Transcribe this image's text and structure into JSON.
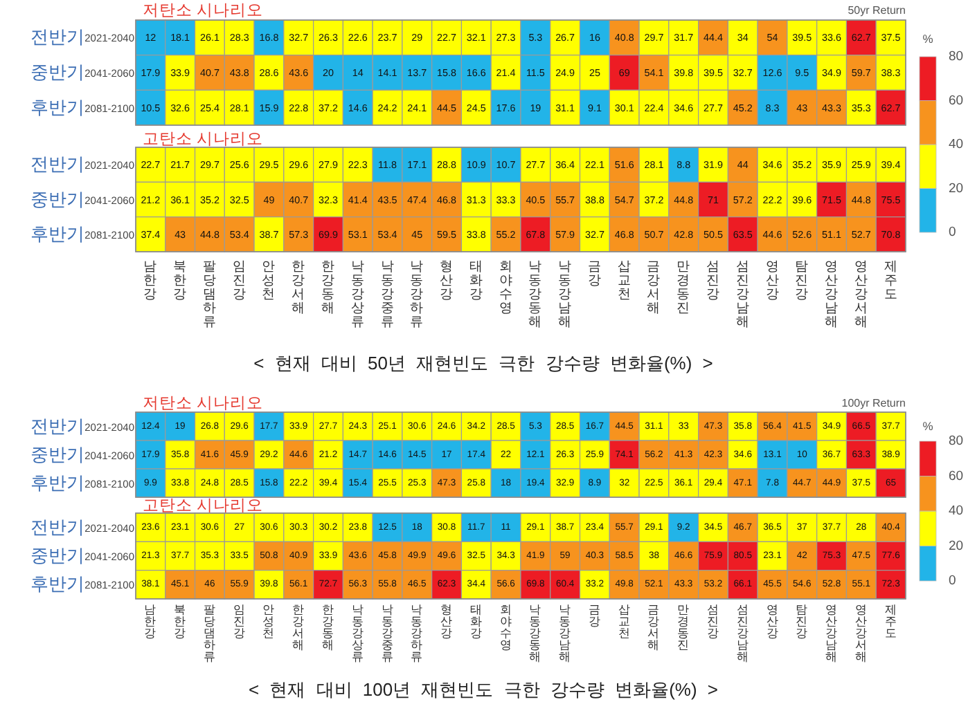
{
  "chart_data": [
    {
      "type": "heatmap",
      "title": "저탄소 시나리오",
      "annotations": [
        "50yr Return"
      ],
      "categories": [
        "남한강",
        "북한강",
        "팔당댐하류",
        "임진강",
        "안성천",
        "한강서해",
        "한강동해",
        "낙동강상류",
        "낙동강중류",
        "낙동강하류",
        "형산강",
        "태화강",
        "회야수영",
        "낙동강동해",
        "낙동강남해",
        "금강",
        "삽교천",
        "금강서해",
        "만경동진",
        "섬진강",
        "섬진강남해",
        "영산강",
        "탐진강",
        "영산강남해",
        "영산강서해",
        "제주도"
      ],
      "y_categories": [
        "전반기2021-2040",
        "중반기2041-2060",
        "후반기2081-2100"
      ],
      "cells": [
        [
          12,
          18.1,
          26.1,
          28.3,
          16.8,
          32.7,
          26.3,
          22.6,
          23.7,
          29,
          22.7,
          32.1,
          27.3,
          5.3,
          26.7,
          16,
          40.8,
          29.7,
          31.7,
          44.4,
          34,
          54,
          39.5,
          33.6,
          62.7,
          37.5
        ],
        [
          17.9,
          33.9,
          40.7,
          43.8,
          28.6,
          43.6,
          20,
          14,
          14.1,
          13.7,
          15.8,
          16.6,
          21.4,
          11.5,
          24.9,
          25,
          69,
          54.1,
          39.8,
          39.5,
          32.7,
          12.6,
          9.5,
          34.9,
          59.7,
          38.3
        ],
        [
          10.5,
          32.6,
          25.4,
          28.1,
          15.9,
          22.8,
          37.2,
          14.6,
          24.2,
          24.1,
          44.5,
          24.5,
          17.6,
          19,
          31.1,
          9.1,
          30.1,
          22.4,
          34.6,
          27.7,
          45.2,
          8.3,
          43,
          43.3,
          35.3,
          62.7
        ]
      ],
      "clim": [
        0,
        80
      ],
      "cticks": [
        0,
        20,
        40,
        60,
        80
      ],
      "clabel": "%",
      "tick_labels": "y",
      "data_labels": true
    },
    {
      "type": "heatmap",
      "title": "고탄소 시나리오",
      "annotations": [
        "< 현재 대비 50년 재현빈도 극한 강수량 변화율(%) >"
      ],
      "categories": [
        "남한강",
        "북한강",
        "팔당댐하류",
        "임진강",
        "안성천",
        "한강서해",
        "한강동해",
        "낙동강상류",
        "낙동강중류",
        "낙동강하류",
        "형산강",
        "태화강",
        "회야수영",
        "낙동강동해",
        "낙동강남해",
        "금강",
        "삽교천",
        "금강서해",
        "만경동진",
        "섬진강",
        "섬진강남해",
        "영산강",
        "탐진강",
        "영산강남해",
        "영산강서해",
        "제주도"
      ],
      "y_categories": [
        "전반기2021-2040",
        "중반기2041-2060",
        "후반기2081-2100"
      ],
      "cells": [
        [
          22.7,
          21.7,
          29.7,
          25.6,
          29.5,
          29.6,
          27.9,
          22.3,
          11.8,
          17.1,
          28.8,
          10.9,
          10.7,
          27.7,
          36.4,
          22.1,
          51.6,
          28.1,
          8.8,
          31.9,
          44,
          34.6,
          35.2,
          35.9,
          25.9,
          39.4
        ],
        [
          21.2,
          36.1,
          35.2,
          32.5,
          49,
          40.7,
          32.3,
          41.4,
          43.5,
          47.4,
          46.8,
          31.3,
          33.3,
          40.5,
          55.7,
          38.8,
          54.7,
          37.2,
          44.8,
          71,
          57.2,
          22.2,
          39.6,
          71.5,
          44.8,
          75.5
        ],
        [
          37.4,
          43,
          44.8,
          53.4,
          38.7,
          57.3,
          69.9,
          53.1,
          53.4,
          45,
          59.5,
          33.8,
          55.2,
          67.8,
          57.9,
          32.7,
          46.8,
          50.7,
          42.8,
          50.5,
          63.5,
          44.6,
          52.6,
          51.1,
          52.7,
          70.8
        ]
      ],
      "data_labels": true
    },
    {
      "type": "heatmap",
      "title": "저탄소 시나리오",
      "annotations": [
        "100yr Return"
      ],
      "categories": [
        "남한강",
        "북한강",
        "팔당댐하류",
        "임진강",
        "안성천",
        "한강서해",
        "한강동해",
        "낙동강상류",
        "낙동강중류",
        "낙동강하류",
        "형산강",
        "태화강",
        "회야수영",
        "낙동강동해",
        "낙동강남해",
        "금강",
        "삽교천",
        "금강서해",
        "만경동진",
        "섬진강",
        "섬진강남해",
        "영산강",
        "탐진강",
        "영산강남해",
        "영산강서해",
        "제주도"
      ],
      "y_categories": [
        "전반기2021-2040",
        "중반기2041-2060",
        "후반기2081-2100"
      ],
      "cells": [
        [
          12.4,
          19,
          26.8,
          29.6,
          17.7,
          33.9,
          27.7,
          24.3,
          25.1,
          30.6,
          24.6,
          34.2,
          28.5,
          5.3,
          28.5,
          16.7,
          44.5,
          31.1,
          33,
          47.3,
          35.8,
          56.4,
          41.5,
          34.9,
          66.5,
          37.7
        ],
        [
          17.9,
          35.8,
          41.6,
          45.9,
          29.2,
          44.6,
          21.2,
          14.7,
          14.6,
          14.5,
          17,
          17.4,
          22,
          12.1,
          26.3,
          25.9,
          74.1,
          56.2,
          41.3,
          42.3,
          34.6,
          13.1,
          10,
          36.7,
          63.3,
          38.9
        ],
        [
          9.9,
          33.8,
          24.8,
          28.5,
          15.8,
          22.2,
          39.4,
          15.4,
          25.5,
          25.3,
          47.3,
          25.8,
          18,
          19.4,
          32.9,
          8.9,
          32,
          22.5,
          36.1,
          29.4,
          47.1,
          7.8,
          44.7,
          44.9,
          37.5,
          65
        ]
      ],
      "clim": [
        0,
        80
      ],
      "cticks": [
        0,
        20,
        40,
        60,
        80
      ],
      "clabel": "%",
      "tick_labels": "y",
      "data_labels": true
    },
    {
      "type": "heatmap",
      "title": "고탄소 시나리오",
      "annotations": [
        "< 현재 대비 100년 재현빈도 극한 강수량 변화율(%) >"
      ],
      "categories": [
        "남한강",
        "북한강",
        "팔당댐하류",
        "임진강",
        "안성천",
        "한강서해",
        "한강동해",
        "낙동강상류",
        "낙동강중류",
        "낙동강하류",
        "형산강",
        "태화강",
        "회야수영",
        "낙동강동해",
        "낙동강남해",
        "금강",
        "삽교천",
        "금강서해",
        "만경동진",
        "섬진강",
        "섬진강남해",
        "영산강",
        "탐진강",
        "영산강남해",
        "영산강서해",
        "제주도"
      ],
      "y_categories": [
        "전반기2021-2040",
        "중반기2041-2060",
        "후반기2081-2100"
      ],
      "cells": [
        [
          23.6,
          23.1,
          30.6,
          27,
          30.6,
          30.3,
          30.2,
          23.8,
          12.5,
          18,
          30.8,
          11.7,
          11,
          29.1,
          38.7,
          23.4,
          55.7,
          29.1,
          9.2,
          34.5,
          46.7,
          36.5,
          37,
          37.7,
          28,
          40.4
        ],
        [
          21.3,
          37.7,
          35.3,
          33.5,
          50.8,
          40.9,
          33.9,
          43.6,
          45.8,
          49.9,
          49.6,
          32.5,
          34.3,
          41.9,
          59,
          40.3,
          58.5,
          38,
          46.6,
          75.9,
          80.5,
          23.1,
          42,
          75.3,
          47.5,
          77.6
        ],
        [
          38.1,
          45.1,
          46,
          55.9,
          39.8,
          56.1,
          72.7,
          56.3,
          55.8,
          46.5,
          62.3,
          34.4,
          56.6,
          69.8,
          60.4,
          33.2,
          49.8,
          52.1,
          43.3,
          53.2,
          66.1,
          45.5,
          54.6,
          52.8,
          55.1,
          72.3
        ]
      ],
      "data_labels": true
    }
  ]
}
